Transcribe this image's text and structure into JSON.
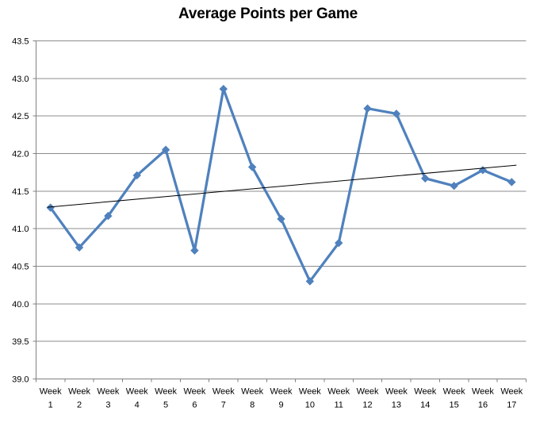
{
  "chart_data": {
    "type": "line",
    "title": "Average Points per Game",
    "categories": [
      "Week 1",
      "Week 2",
      "Week 3",
      "Week 4",
      "Week 5",
      "Week 6",
      "Week 7",
      "Week 8",
      "Week 9",
      "Week 10",
      "Week 11",
      "Week 12",
      "Week 13",
      "Week 14",
      "Week 15",
      "Week 16",
      "Week 17"
    ],
    "series": [
      {
        "color": "#4F81BD",
        "marker": "diamond",
        "line_width": 3.25,
        "values": [
          41.28,
          40.75,
          41.17,
          41.71,
          42.05,
          40.71,
          42.86,
          41.82,
          41.13,
          40.3,
          40.81,
          42.6,
          42.53,
          41.67,
          41.57,
          41.78,
          41.62
        ]
      }
    ],
    "trendline": {
      "type": "linear",
      "color": "#000000",
      "line_width": 1,
      "start_value": 41.29,
      "end_value": 41.84
    },
    "ylim": [
      39.0,
      43.5
    ],
    "ytick_step": 0.5,
    "ytick_labels": [
      "43.5",
      "43.0",
      "42.5",
      "42.0",
      "41.5",
      "41.0",
      "40.5",
      "40.0",
      "39.5",
      "39.0"
    ],
    "xlabel": "",
    "ylabel": "",
    "grid": "horizontal-only",
    "legend_position": "none",
    "gridline_color": "#8C8C8C",
    "axis_color": "#808080",
    "text_color": "#000000",
    "background_color": "#FFFFFF"
  }
}
